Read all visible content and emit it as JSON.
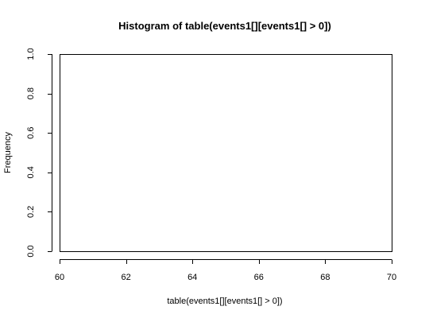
{
  "chart_data": {
    "type": "bar",
    "title": "Histogram of table(events1[][events1[] > 0])",
    "xlabel": "table(events1[][events1[] > 0])",
    "ylabel": "Frequency",
    "xlim": [
      60,
      70
    ],
    "ylim": [
      0,
      1
    ],
    "x_ticks": [
      60,
      62,
      64,
      66,
      68,
      70
    ],
    "x_tick_labels": [
      "60",
      "62",
      "64",
      "66",
      "68",
      "70"
    ],
    "y_ticks": [
      0,
      0.2,
      0.4,
      0.6,
      0.8,
      1.0
    ],
    "y_tick_labels": [
      "0.0",
      "0.2",
      "0.4",
      "0.6",
      "0.8",
      "1.0"
    ],
    "bins": [],
    "grid": false
  }
}
